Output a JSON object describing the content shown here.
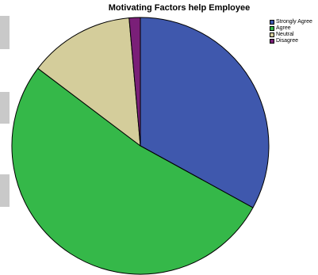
{
  "chart_data": {
    "type": "pie",
    "title": "Motivating Factors help Employee",
    "categories": [
      "Strongly Agree",
      "Agree",
      "Neutral",
      "Disagree"
    ],
    "values": [
      33.0,
      52.3,
      13.3,
      1.4
    ],
    "colors": [
      "#3f58ad",
      "#35b849",
      "#d4cd9b",
      "#7a1f78"
    ],
    "start_angle_deg": 0,
    "direction": "clockwise",
    "legend_position": "top-right"
  }
}
